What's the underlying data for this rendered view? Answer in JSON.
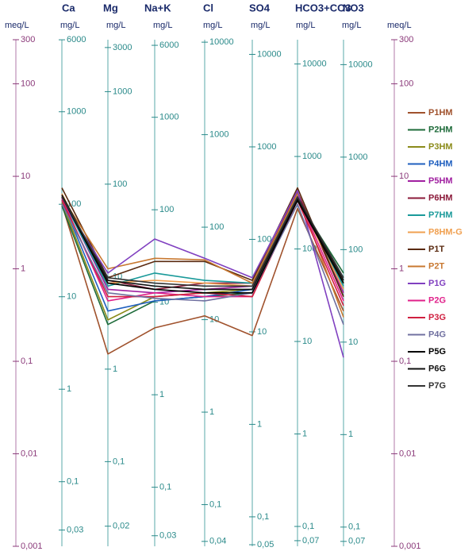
{
  "chart_data": {
    "type": "line",
    "log_scale": true,
    "y_label": "meq/L",
    "y2_label": "meq/L",
    "ylim": [
      0.001,
      300
    ],
    "yticks": [
      300,
      100,
      10,
      1,
      {
        "value": 0.1,
        "label": "0,1"
      },
      {
        "value": 0.01,
        "label": "0,01"
      },
      {
        "value": 0.001,
        "label": "0,001"
      }
    ],
    "categories": [
      "Ca",
      "Mg",
      "Na+K",
      "Cl",
      "SO4",
      "HCO3+CO3",
      "NO3"
    ],
    "axes": [
      {
        "unit": "mg/L",
        "ticks": [
          {
            "value": 299.4,
            "label": "6000"
          },
          {
            "value": 49.9,
            "label": "1000"
          },
          {
            "value": 4.99,
            "label": "100"
          },
          {
            "value": 0.499,
            "label": "10"
          },
          {
            "value": 0.0499,
            "label": "1"
          },
          {
            "value": 0.00499,
            "label": "0,1"
          },
          {
            "value": 0.0015,
            "label": "0,03"
          }
        ]
      },
      {
        "unit": "mg/L",
        "ticks": [
          {
            "value": 246.9,
            "label": "3000"
          },
          {
            "value": 82.3,
            "label": "1000"
          },
          {
            "value": 8.23,
            "label": "100"
          },
          {
            "value": 0.823,
            "label": "10"
          },
          {
            "value": 0.0823,
            "label": "1"
          },
          {
            "value": 0.00823,
            "label": "0,1"
          },
          {
            "value": 0.00165,
            "label": "0,02"
          }
        ]
      },
      {
        "unit": "mg/L",
        "ticks": [
          {
            "value": 260.9,
            "label": "6000"
          },
          {
            "value": 43.5,
            "label": "1000"
          },
          {
            "value": 4.35,
            "label": "100"
          },
          {
            "value": 0.435,
            "label": "10"
          },
          {
            "value": 0.0435,
            "label": "1"
          },
          {
            "value": 0.00435,
            "label": "0,1"
          },
          {
            "value": 0.0013,
            "label": "0,03"
          }
        ]
      },
      {
        "unit": "mg/L",
        "ticks": [
          {
            "value": 282.1,
            "label": "10000"
          },
          {
            "value": 28.21,
            "label": "1000"
          },
          {
            "value": 2.821,
            "label": "100"
          },
          {
            "value": 0.2821,
            "label": "10"
          },
          {
            "value": 0.02821,
            "label": "1"
          },
          {
            "value": 0.002821,
            "label": "0,1"
          },
          {
            "value": 0.00113,
            "label": "0,04"
          }
        ]
      },
      {
        "unit": "mg/L",
        "ticks": [
          {
            "value": 208.2,
            "label": "10000"
          },
          {
            "value": 20.82,
            "label": "1000"
          },
          {
            "value": 2.082,
            "label": "100"
          },
          {
            "value": 0.2082,
            "label": "10"
          },
          {
            "value": 0.02082,
            "label": "1"
          },
          {
            "value": 0.002082,
            "label": "0,1"
          },
          {
            "value": 0.00104,
            "label": "0,05"
          }
        ]
      },
      {
        "unit": "mg/L",
        "ticks": [
          {
            "value": 163.9,
            "label": "10000"
          },
          {
            "value": 16.39,
            "label": "1000"
          },
          {
            "value": 1.639,
            "label": "100"
          },
          {
            "value": 0.1639,
            "label": "10"
          },
          {
            "value": 0.01639,
            "label": "1"
          },
          {
            "value": 0.001639,
            "label": "0,1"
          },
          {
            "value": 0.00115,
            "label": "0,07"
          }
        ]
      },
      {
        "unit": "mg/L",
        "ticks": [
          {
            "value": 161.3,
            "label": "10000"
          },
          {
            "value": 16.13,
            "label": "1000"
          },
          {
            "value": 1.613,
            "label": "100"
          },
          {
            "value": 0.1613,
            "label": "10"
          },
          {
            "value": 0.01613,
            "label": "1"
          },
          {
            "value": 0.001613,
            "label": "0,1"
          },
          {
            "value": 0.00113,
            "label": "0,07"
          }
        ]
      }
    ],
    "series": [
      {
        "name": "P1HM",
        "color": "#a0522d",
        "values": [
          5.0,
          0.12,
          0.23,
          0.31,
          0.19,
          4.5,
          0.35
        ]
      },
      {
        "name": "P2HM",
        "color": "#1e6b3a",
        "values": [
          4.8,
          0.25,
          0.45,
          0.5,
          0.55,
          5.5,
          0.9
        ]
      },
      {
        "name": "P3HM",
        "color": "#8b8b1a",
        "values": [
          5.2,
          0.28,
          0.5,
          0.55,
          0.6,
          5.8,
          0.7
        ]
      },
      {
        "name": "P4HM",
        "color": "#1f5fbf",
        "values": [
          5.5,
          0.35,
          0.45,
          0.5,
          0.6,
          6.0,
          0.6
        ]
      },
      {
        "name": "P5HM",
        "color": "#a020a0",
        "values": [
          6.0,
          0.6,
          0.55,
          0.6,
          0.65,
          6.5,
          0.55
        ]
      },
      {
        "name": "P6HM",
        "color": "#8b1a3a",
        "values": [
          6.2,
          0.75,
          0.6,
          0.7,
          0.7,
          6.8,
          0.5
        ]
      },
      {
        "name": "P7HM",
        "color": "#1a9a9a",
        "values": [
          5.8,
          0.65,
          0.9,
          0.75,
          0.7,
          6.0,
          0.65
        ]
      },
      {
        "name": "P8HM-G",
        "color": "#f0a050",
        "values": [
          6.5,
          0.7,
          0.75,
          0.7,
          0.65,
          5.8,
          0.6
        ]
      },
      {
        "name": "P1T",
        "color": "#5a2a10",
        "values": [
          7.5,
          0.8,
          1.2,
          1.2,
          0.75,
          7.5,
          0.5
        ]
      },
      {
        "name": "P2T",
        "color": "#c87830",
        "values": [
          6.0,
          1.0,
          1.3,
          1.25,
          0.7,
          6.5,
          0.3
        ]
      },
      {
        "name": "P1G",
        "color": "#8040c0",
        "values": [
          5.5,
          0.9,
          2.1,
          1.3,
          0.8,
          7.0,
          0.11
        ]
      },
      {
        "name": "P2G",
        "color": "#e0208a",
        "values": [
          5.8,
          0.45,
          0.55,
          0.5,
          0.5,
          6.0,
          0.45
        ]
      },
      {
        "name": "P3G",
        "color": "#d02040",
        "values": [
          5.5,
          0.5,
          0.5,
          0.55,
          0.5,
          5.5,
          0.4
        ]
      },
      {
        "name": "P4G",
        "color": "#7070a0",
        "values": [
          5.0,
          0.55,
          0.48,
          0.45,
          0.55,
          5.0,
          0.25
        ]
      },
      {
        "name": "P5G",
        "color": "#000000",
        "values": [
          6.0,
          0.7,
          0.6,
          0.55,
          0.55,
          5.5,
          0.7
        ]
      },
      {
        "name": "P6G",
        "color": "#111111",
        "values": [
          6.3,
          0.75,
          0.65,
          0.6,
          0.6,
          5.8,
          0.75
        ]
      },
      {
        "name": "P7G",
        "color": "#333333",
        "values": [
          6.0,
          0.8,
          0.7,
          0.65,
          0.65,
          6.0,
          0.8
        ]
      }
    ]
  }
}
